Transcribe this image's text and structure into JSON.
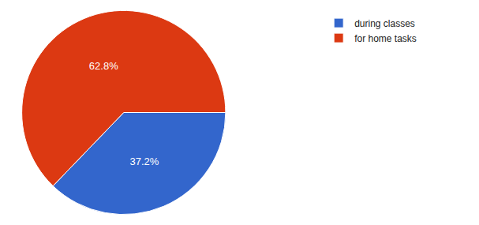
{
  "chart_data": {
    "type": "pie",
    "categories": [
      "during classes",
      "for home tasks"
    ],
    "values": [
      37.2,
      62.8
    ],
    "value_labels": [
      "37.2%",
      "62.8%"
    ],
    "colors": [
      "#3366cc",
      "#dc3912"
    ],
    "data_labels": true,
    "legend": "top-right"
  }
}
